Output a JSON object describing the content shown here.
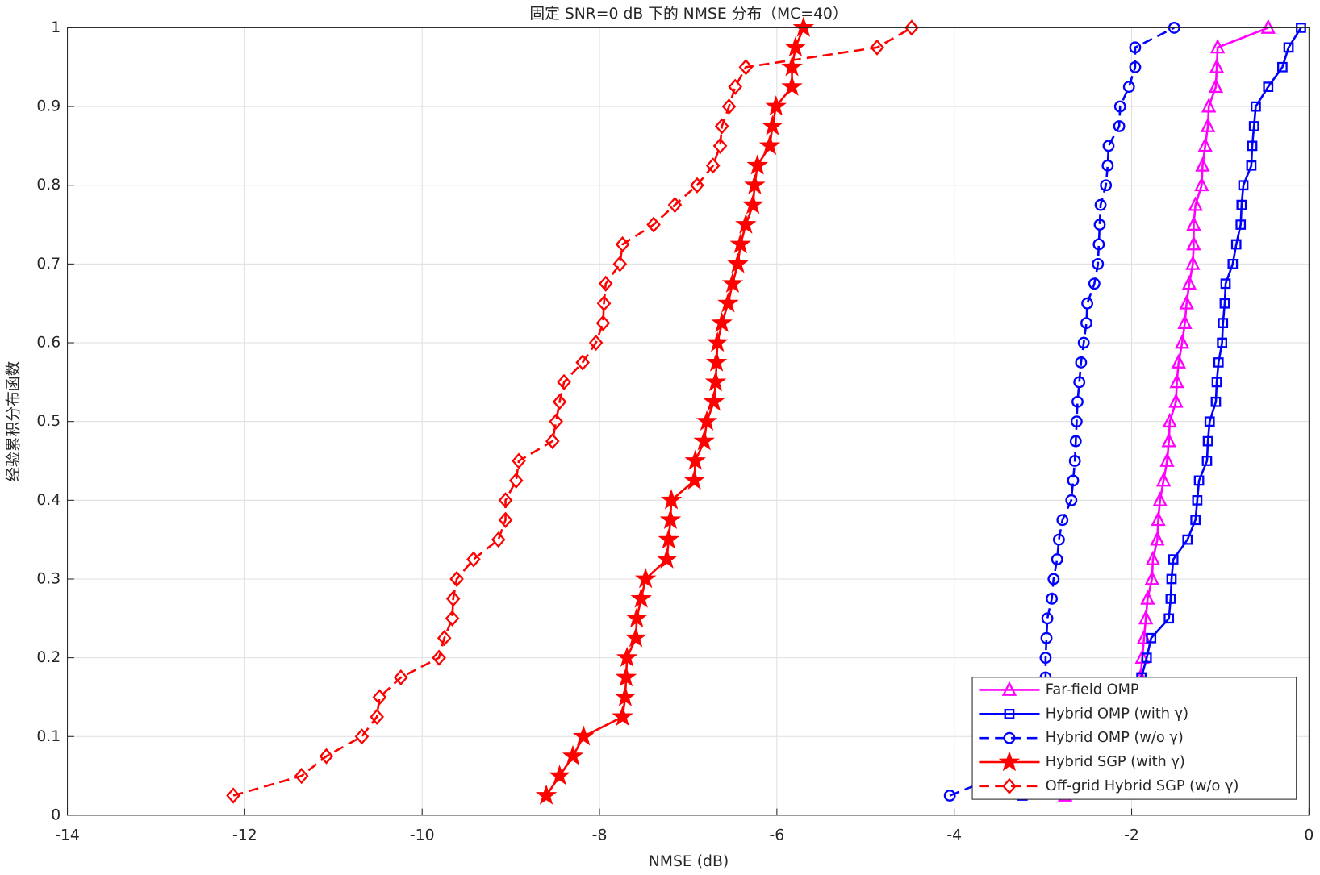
{
  "chart_data": {
    "type": "line",
    "title": "固定 SNR=0 dB 下的 NMSE 分布（MC=40）",
    "x_label": "NMSE (dB)",
    "y_label": "经验累积分布函数",
    "xlim": [
      -14,
      0
    ],
    "ylim": [
      0,
      1
    ],
    "xticks": [
      -14,
      -12,
      -10,
      -8,
      -6,
      -4,
      -2,
      0
    ],
    "yticks": [
      0,
      0.1,
      0.2,
      0.3,
      0.4,
      0.5,
      0.6,
      0.7,
      0.8,
      0.9,
      1
    ],
    "grid": true,
    "legend": "lower right",
    "y": [
      0.025,
      0.05,
      0.075,
      0.1,
      0.125,
      0.15,
      0.175,
      0.2,
      0.225,
      0.25,
      0.275,
      0.3,
      0.325,
      0.35,
      0.375,
      0.4,
      0.425,
      0.45,
      0.475,
      0.5,
      0.525,
      0.55,
      0.575,
      0.6,
      0.625,
      0.65,
      0.675,
      0.7,
      0.725,
      0.75,
      0.775,
      0.8,
      0.825,
      0.85,
      0.875,
      0.9,
      0.925,
      0.95,
      0.975,
      1
    ],
    "series": [
      {
        "name": "Far-field OMP",
        "color": "#ff00ff",
        "line_style": "solid",
        "marker": "triangle",
        "x": [
          -2.75,
          -2.5,
          -2.3,
          -2.1,
          -2.0,
          -1.95,
          -1.9,
          -1.88,
          -1.86,
          -1.84,
          -1.82,
          -1.77,
          -1.76,
          -1.71,
          -1.7,
          -1.68,
          -1.64,
          -1.6,
          -1.58,
          -1.57,
          -1.5,
          -1.49,
          -1.47,
          -1.43,
          -1.4,
          -1.38,
          -1.35,
          -1.31,
          -1.3,
          -1.3,
          -1.28,
          -1.21,
          -1.2,
          -1.17,
          -1.14,
          -1.13,
          -1.05,
          -1.04,
          -1.03,
          -0.46
        ]
      },
      {
        "name": "Hybrid OMP (with γ)",
        "color": "#0000ff",
        "line_style": "solid",
        "marker": "square",
        "x": [
          -3.23,
          -2.9,
          -2.6,
          -2.3,
          -2.1,
          -1.95,
          -1.89,
          -1.83,
          -1.78,
          -1.58,
          -1.56,
          -1.55,
          -1.53,
          -1.37,
          -1.28,
          -1.26,
          -1.24,
          -1.15,
          -1.14,
          -1.12,
          -1.05,
          -1.04,
          -1.02,
          -0.98,
          -0.97,
          -0.95,
          -0.94,
          -0.86,
          -0.82,
          -0.77,
          -0.76,
          -0.74,
          -0.65,
          -0.64,
          -0.62,
          -0.6,
          -0.46,
          -0.3,
          -0.23,
          -0.09
        ]
      },
      {
        "name": "Hybrid OMP (w/o γ)",
        "color": "#0000ff",
        "line_style": "dashed",
        "marker": "circle",
        "x": [
          -4.05,
          -3.5,
          -3.3,
          -3.15,
          -3.05,
          -3.0,
          -2.97,
          -2.97,
          -2.96,
          -2.95,
          -2.9,
          -2.88,
          -2.84,
          -2.82,
          -2.78,
          -2.68,
          -2.66,
          -2.64,
          -2.63,
          -2.62,
          -2.61,
          -2.59,
          -2.57,
          -2.54,
          -2.51,
          -2.5,
          -2.42,
          -2.38,
          -2.37,
          -2.36,
          -2.35,
          -2.29,
          -2.27,
          -2.26,
          -2.14,
          -2.13,
          -2.03,
          -1.96,
          -1.96,
          -1.52
        ]
      },
      {
        "name": "Hybrid SGP (with γ)",
        "color": "#ff0000",
        "line_style": "solid",
        "marker": "star",
        "x": [
          -8.6,
          -8.45,
          -8.3,
          -8.18,
          -7.74,
          -7.71,
          -7.7,
          -7.69,
          -7.59,
          -7.58,
          -7.53,
          -7.48,
          -7.24,
          -7.22,
          -7.2,
          -7.19,
          -6.93,
          -6.92,
          -6.82,
          -6.79,
          -6.71,
          -6.69,
          -6.68,
          -6.67,
          -6.62,
          -6.55,
          -6.5,
          -6.44,
          -6.41,
          -6.35,
          -6.27,
          -6.25,
          -6.22,
          -6.08,
          -6.05,
          -6.01,
          -5.83,
          -5.83,
          -5.79,
          -5.7
        ]
      },
      {
        "name": "Off-grid Hybrid SGP (w/o γ)",
        "color": "#ff0000",
        "line_style": "dashed",
        "marker": "diamond",
        "x": [
          -12.13,
          -11.36,
          -11.08,
          -10.68,
          -10.51,
          -10.48,
          -10.24,
          -9.81,
          -9.75,
          -9.66,
          -9.65,
          -9.61,
          -9.42,
          -9.14,
          -9.06,
          -9.06,
          -8.94,
          -8.91,
          -8.53,
          -8.49,
          -8.45,
          -8.4,
          -8.19,
          -8.04,
          -7.96,
          -7.95,
          -7.93,
          -7.77,
          -7.74,
          -7.39,
          -7.15,
          -6.9,
          -6.72,
          -6.64,
          -6.62,
          -6.54,
          -6.47,
          -6.35,
          -4.87,
          -4.48
        ]
      }
    ]
  }
}
